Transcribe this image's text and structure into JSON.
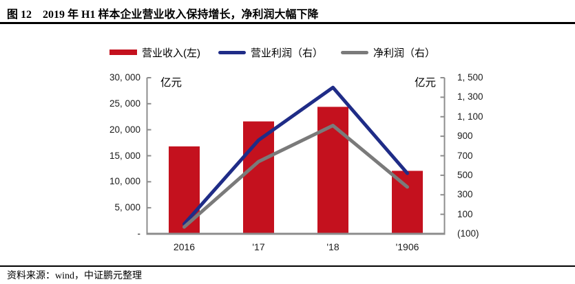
{
  "page": {
    "title": "图 12　2019 年 H1 样本企业营业收入保持增长，净利润大幅下降",
    "source_note": "资料来源：wind，中证鹏元整理"
  },
  "colors": {
    "bar_red": "#C4111E",
    "line_blue": "#1F2C87",
    "line_gray": "#7A7A7A",
    "axis_gray": "#8C8C8C",
    "rule_black": "#000000"
  },
  "legend": {
    "position": "top",
    "items": [
      {
        "label": "营业收入(左)",
        "color": "#C4111E",
        "shape": "bar"
      },
      {
        "label": "营业利润（右）",
        "color": "#1F2C87",
        "shape": "line"
      },
      {
        "label": "净利润（右）",
        "color": "#7A7A7A",
        "shape": "line"
      }
    ]
  },
  "chart_data": {
    "type": "combo",
    "categories": [
      "2016",
      "'17",
      "'18",
      "'1906"
    ],
    "series": [
      {
        "name": "营业收入(左)",
        "type": "bar",
        "axis": "left",
        "color": "#C4111E",
        "values": [
          16800,
          21600,
          24400,
          12100
        ]
      },
      {
        "name": "营业利润（右）",
        "type": "line",
        "axis": "right",
        "color": "#1F2C87",
        "values": [
          0,
          860,
          1400,
          520
        ]
      },
      {
        "name": "净利润（右）",
        "type": "line",
        "axis": "right",
        "color": "#7A7A7A",
        "values": [
          -30,
          640,
          1010,
          380
        ]
      }
    ],
    "left_axis": {
      "unit": "亿元",
      "min": 0,
      "max": 30000,
      "tick_labels": [
        "30, 000",
        "25, 000",
        "20, 000",
        "15, 000",
        "10, 000",
        "5, 000",
        "-"
      ]
    },
    "right_axis": {
      "unit": "亿元",
      "min": -100,
      "max": 1500,
      "tick_labels": [
        "1, 500",
        "1, 300",
        "1, 100",
        "900",
        "700",
        "500",
        "300",
        "100",
        "(100)"
      ]
    },
    "grid": false,
    "legend_position": "top"
  }
}
